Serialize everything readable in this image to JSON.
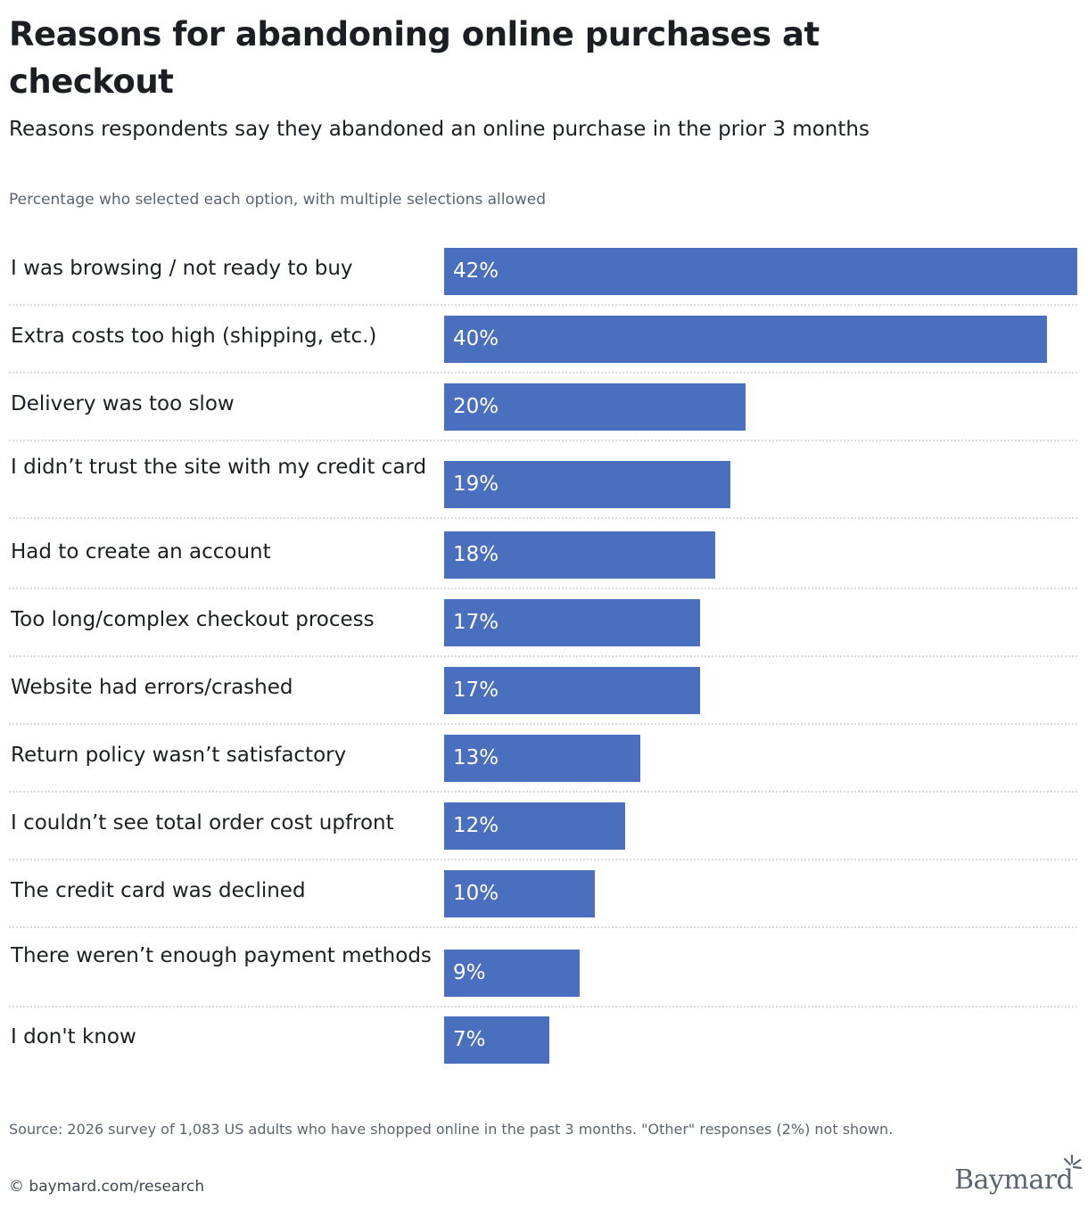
{
  "title": "Reasons for abandoning online purchases at checkout",
  "subtitle": "Reasons respondents say they abandoned an online purchase in the prior 3 months",
  "note": "Percentage who selected each option, with multiple selections allowed",
  "source": "Source: 2026 survey of 1,083 US adults who have shopped online in the past 3 months. \"Other\" responses (2%) not shown.",
  "credit": "© baymard.com/research",
  "logo_text": "Baymard",
  "colors": {
    "bar": "#4a6fbe",
    "text": "#1b1f24",
    "muted": "#5a6570"
  },
  "chart_data": {
    "type": "bar",
    "orientation": "horizontal",
    "title": "Reasons for abandoning online purchases at checkout",
    "subtitle": "Reasons respondents say they abandoned an online purchase in the prior 3 months",
    "categories": [
      "I was browsing / not ready to buy",
      "Extra costs too high (shipping, etc.)",
      "Delivery was too slow",
      "I didn’t trust the site with my credit card",
      "Had to create an account",
      "Too long/complex checkout process",
      "Website had errors/crashed",
      "Return policy wasn’t satisfactory",
      "I couldn’t see total order cost upfront",
      "The credit card was declined",
      "There weren’t enough payment methods",
      "I don't know"
    ],
    "values": [
      42,
      40,
      20,
      19,
      18,
      17,
      17,
      13,
      12,
      10,
      9,
      7
    ],
    "value_labels": [
      "42%",
      "40%",
      "20%",
      "19%",
      "18%",
      "17%",
      "17%",
      "13%",
      "12%",
      "10%",
      "9%",
      "7%"
    ],
    "unit": "%",
    "xlim": [
      0,
      42
    ],
    "grid": false,
    "legend": "none"
  }
}
